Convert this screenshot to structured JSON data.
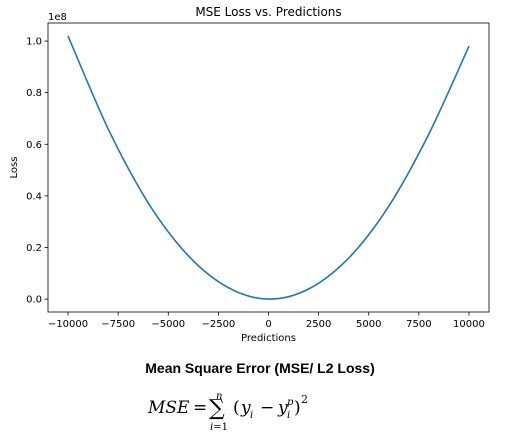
{
  "chart_data": {
    "type": "line",
    "title": "MSE Loss vs. Predictions",
    "xlabel": "Predictions",
    "ylabel": "Loss",
    "y_scale_label": "1e8",
    "xlim": [
      -11000,
      11000
    ],
    "ylim": [
      -0.05,
      1.07
    ],
    "x_ticks": [
      -10000,
      -7500,
      -5000,
      -2500,
      0,
      2500,
      5000,
      7500,
      10000
    ],
    "x_tick_labels": [
      "−10000",
      "−7500",
      "−5000",
      "−2500",
      "0",
      "2500",
      "5000",
      "7500",
      "10000"
    ],
    "y_ticks": [
      0.0,
      0.2,
      0.4,
      0.6,
      0.8,
      1.0
    ],
    "y_tick_labels": [
      "0.0",
      "0.2",
      "0.4",
      "0.6",
      "0.8",
      "1.0"
    ],
    "series": [
      {
        "color": "#1f77b4",
        "x": [
          -10000,
          -8000,
          -6000,
          -4000,
          -2000,
          0,
          2000,
          4000,
          6000,
          8000,
          10000
        ],
        "y": [
          1.02,
          0.66,
          0.373,
          0.168,
          0.044,
          0.0,
          0.039,
          0.159,
          0.36,
          0.64,
          0.98
        ]
      }
    ],
    "grid": false,
    "legend": "none"
  },
  "caption": {
    "heading": "Mean Square Error (MSE/ L2 Loss)",
    "formula": "MSE = Σ_{i=1}^{n} (y_i − y_i^p)^2"
  }
}
